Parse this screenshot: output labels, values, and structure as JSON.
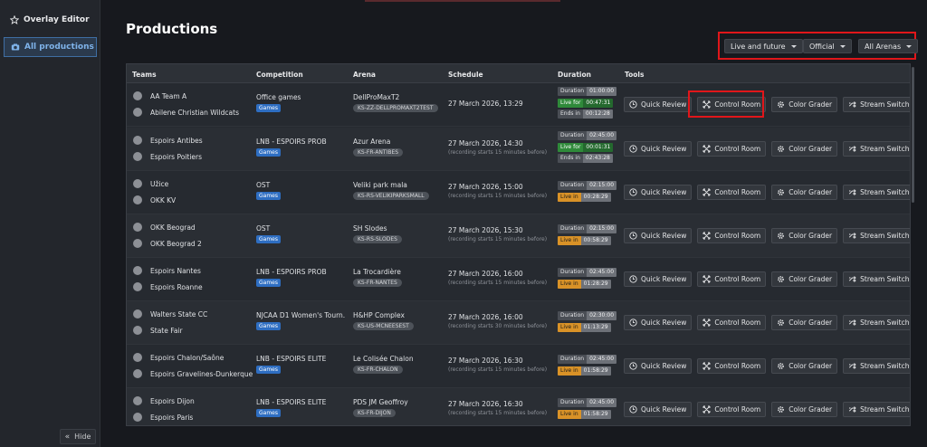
{
  "sidebar": {
    "overlay_editor": "Overlay Editor",
    "all_productions": "All productions",
    "hide": "Hide"
  },
  "page_title": "Productions",
  "filters": {
    "time": "Live and future",
    "type": "Official",
    "arena": "All Arenas"
  },
  "columns": {
    "teams": "Teams",
    "competition": "Competition",
    "arena": "Arena",
    "schedule": "Schedule",
    "duration": "Duration",
    "tools": "Tools"
  },
  "tools": {
    "quick_review": "Quick Review",
    "control_room": "Control Room",
    "color_grader": "Color Grader",
    "stream_switcher": "Stream Switcher"
  },
  "rows": [
    {
      "team1": "AA Team A",
      "team2": "Abilene Christian Wildcats",
      "competition": "Office games",
      "tag": "Games",
      "arena": "DellProMaxT2",
      "arena_code": "KS-ZZ-DELLPROMAXT2TEST",
      "schedule": "27 March 2026, 13:29",
      "schedule_note": "",
      "duration": "01:00:00",
      "status_label": "Live for",
      "status_value": "00:47:31",
      "ends_label": "Ends in",
      "ends_value": "00:12:28"
    },
    {
      "team1": "Espoirs Antibes",
      "team2": "Espoirs Poitiers",
      "competition": "LNB - ESPOIRS PROB",
      "tag": "Games",
      "arena": "Azur Arena",
      "arena_code": "KS-FR-ANTIBES",
      "schedule": "27 March 2026, 14:30",
      "schedule_note": "(recording starts 15 minutes before)",
      "duration": "02:45:00",
      "status_label": "Live for",
      "status_value": "00:01:31",
      "ends_label": "Ends in",
      "ends_value": "02:43:28"
    },
    {
      "team1": "Užice",
      "team2": "OKK KV",
      "competition": "OST",
      "tag": "Games",
      "arena": "Veliki park mala",
      "arena_code": "KS-RS-VELIKIPARKSMALL",
      "schedule": "27 March 2026, 15:00",
      "schedule_note": "(recording starts 15 minutes before)",
      "duration": "02:15:00",
      "status_label": "Live in",
      "status_value": "00:28:29"
    },
    {
      "team1": "OKK Beograd",
      "team2": "OKK Beograd 2",
      "competition": "OST",
      "tag": "Games",
      "arena": "SH Slodes",
      "arena_code": "KS-RS-SLODES",
      "schedule": "27 March 2026, 15:30",
      "schedule_note": "(recording starts 15 minutes before)",
      "duration": "02:15:00",
      "status_label": "Live in",
      "status_value": "00:58:29"
    },
    {
      "team1": "Espoirs Nantes",
      "team2": "Espoirs Roanne",
      "competition": "LNB - ESPOIRS PROB",
      "tag": "Games",
      "arena": "La Trocardière",
      "arena_code": "KS-FR-NANTES",
      "schedule": "27 March 2026, 16:00",
      "schedule_note": "(recording starts 15 minutes before)",
      "duration": "02:45:00",
      "status_label": "Live in",
      "status_value": "01:28:29"
    },
    {
      "team1": "Walters State CC",
      "team2": "State Fair",
      "competition": "NJCAA D1 Women's Tourn.",
      "tag": "Games",
      "arena": "H&HP Complex",
      "arena_code": "KS-US-MCNEESEST",
      "schedule": "27 March 2026, 16:00",
      "schedule_note": "(recording starts 30 minutes before)",
      "duration": "02:30:00",
      "status_label": "Live in",
      "status_value": "01:13:29"
    },
    {
      "team1": "Espoirs Chalon/Saône",
      "team2": "Espoirs Gravelines-Dunkerque",
      "competition": "LNB - ESPOIRS ELITE",
      "tag": "Games",
      "arena": "Le Colisée Chalon",
      "arena_code": "KS-FR-CHALON",
      "schedule": "27 March 2026, 16:30",
      "schedule_note": "(recording starts 15 minutes before)",
      "duration": "02:45:00",
      "status_label": "Live in",
      "status_value": "01:58:29"
    },
    {
      "team1": "Espoirs Dijon",
      "team2": "Espoirs Paris",
      "competition": "LNB - ESPOIRS ELITE",
      "tag": "Games",
      "arena": "PDS JM Geoffroy",
      "arena_code": "KS-FR-DIJON",
      "schedule": "27 March 2026, 16:30",
      "schedule_note": "(recording starts 15 minutes before)",
      "duration": "02:45:00",
      "status_label": "Live in",
      "status_value": "01:58:29"
    }
  ],
  "duration_label": "Duration",
  "colors": {
    "highlight": "#e0161a",
    "tag_blue": "#2e6ec2",
    "live_green": "#2f8a3a",
    "live_in_orange": "#d99227"
  }
}
